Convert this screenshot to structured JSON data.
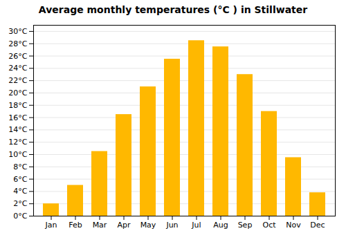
{
  "chart_data": {
    "type": "bar",
    "title": "Average monthly temperatures (°C ) in Stillwater",
    "categories": [
      "Jan",
      "Feb",
      "Mar",
      "Apr",
      "May",
      "Jun",
      "Jul",
      "Aug",
      "Sep",
      "Oct",
      "Nov",
      "Dec"
    ],
    "values": [
      2,
      5,
      10.5,
      16.5,
      21,
      25.5,
      28.5,
      27.5,
      23,
      17,
      9.5,
      3.8
    ],
    "color": "#FFB800",
    "ylim": [
      0,
      31
    ],
    "yticks": [
      {
        "value": 0,
        "label": "0°C"
      },
      {
        "value": 2,
        "label": "2°C"
      },
      {
        "value": 4,
        "label": "4°C"
      },
      {
        "value": 6,
        "label": "6°C"
      },
      {
        "value": 8,
        "label": "8°C"
      },
      {
        "value": 10,
        "label": "10°C"
      },
      {
        "value": 12,
        "label": "12°C"
      },
      {
        "value": 14,
        "label": "14°C"
      },
      {
        "value": 16,
        "label": "16°C"
      },
      {
        "value": 18,
        "label": "18°C"
      },
      {
        "value": 20,
        "label": "20°C"
      },
      {
        "value": 22,
        "label": "22°C"
      },
      {
        "value": 24,
        "label": "24°C"
      },
      {
        "value": 26,
        "label": "26°C"
      },
      {
        "value": 28,
        "label": "28°C"
      },
      {
        "value": 30,
        "label": "30°C"
      }
    ],
    "grid": true
  }
}
